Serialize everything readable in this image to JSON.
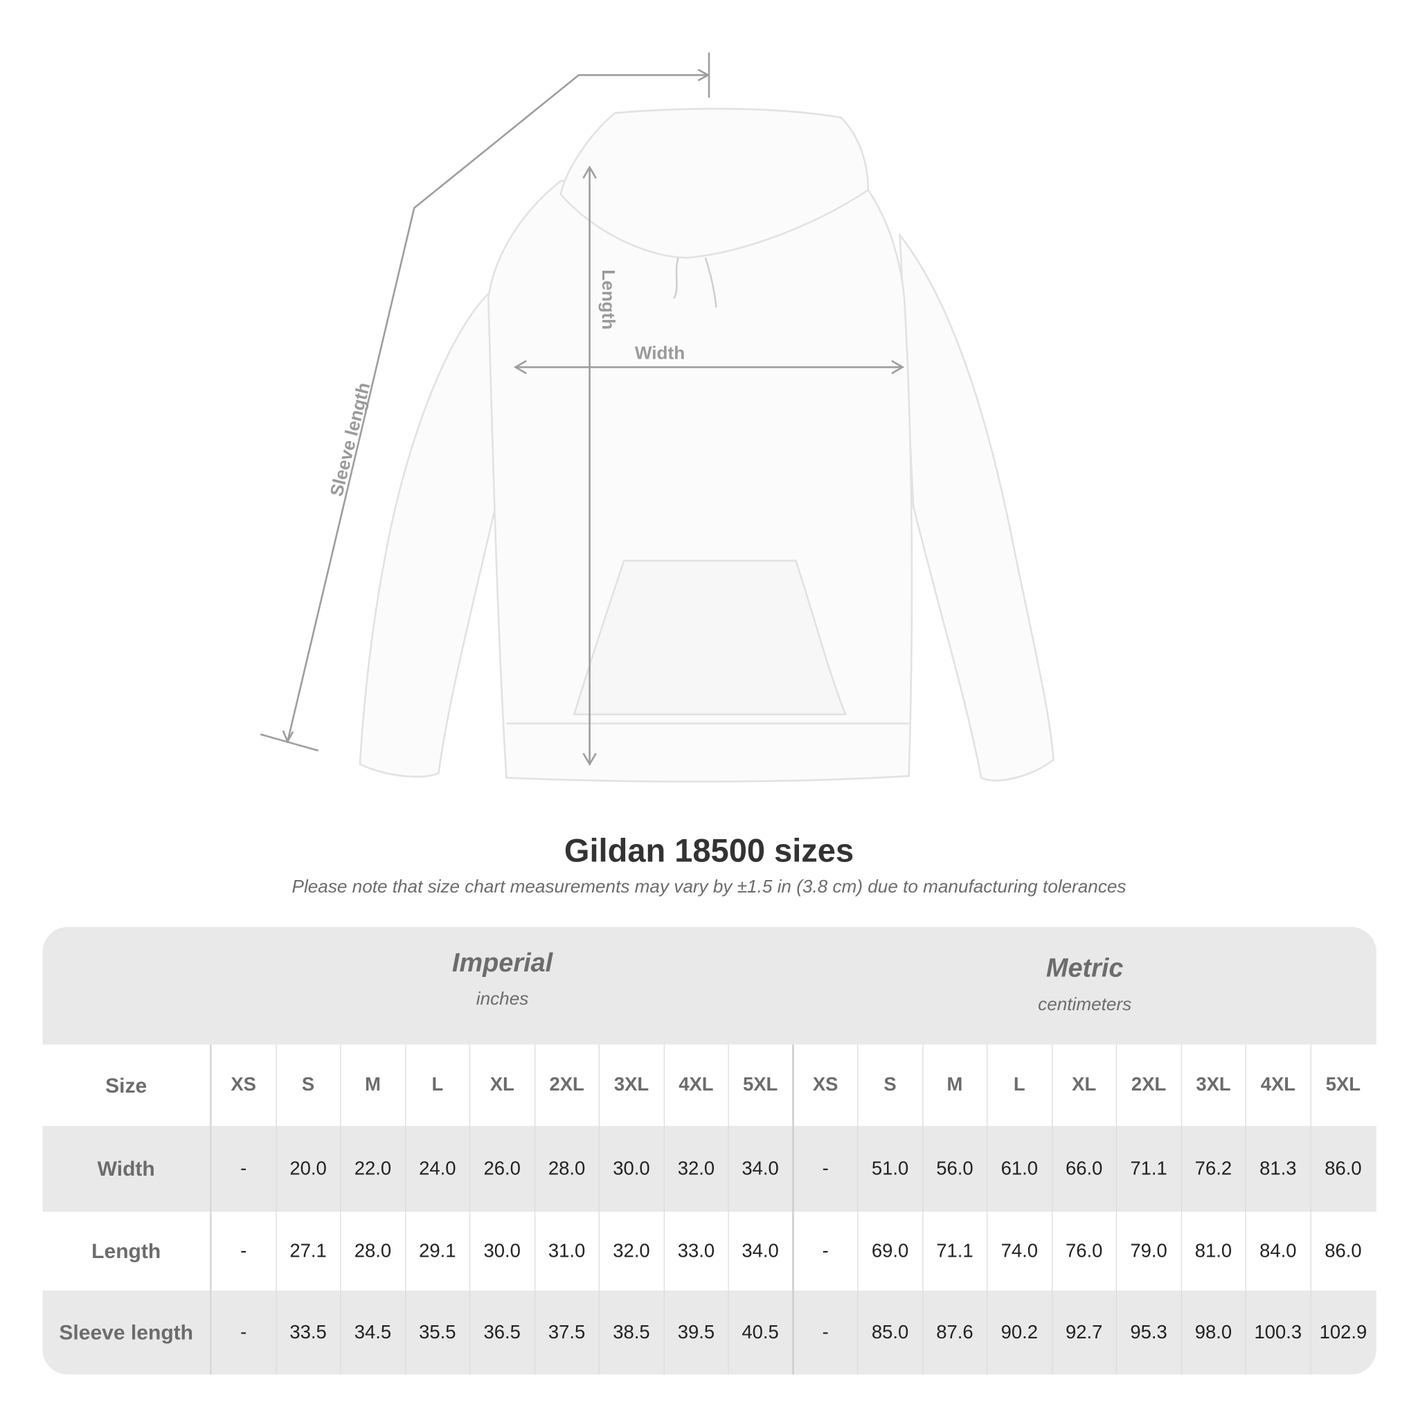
{
  "diagram": {
    "labels": {
      "sleeve": "Sleeve length",
      "length": "Length",
      "width": "Width"
    },
    "line_color": "#9e9e9e"
  },
  "title": "Gildan 18500 sizes",
  "note": "Please note that size chart measurements may vary by ±1.5 in (3.8 cm) due to manufacturing tolerances",
  "table": {
    "imperial": {
      "name": "Imperial",
      "unit": "inches"
    },
    "metric": {
      "name": "Metric",
      "unit": "centimeters"
    },
    "size_label": "Size",
    "sizes": [
      "XS",
      "S",
      "M",
      "L",
      "XL",
      "2XL",
      "3XL",
      "4XL",
      "5XL"
    ],
    "rows": [
      {
        "label": "Width",
        "imperial": [
          "-",
          "20.0",
          "22.0",
          "24.0",
          "26.0",
          "28.0",
          "30.0",
          "32.0",
          "34.0"
        ],
        "metric": [
          "-",
          "51.0",
          "56.0",
          "61.0",
          "66.0",
          "71.1",
          "76.2",
          "81.3",
          "86.0"
        ]
      },
      {
        "label": "Length",
        "imperial": [
          "-",
          "27.1",
          "28.0",
          "29.1",
          "30.0",
          "31.0",
          "32.0",
          "33.0",
          "34.0"
        ],
        "metric": [
          "-",
          "69.0",
          "71.1",
          "74.0",
          "76.0",
          "79.0",
          "81.0",
          "84.0",
          "86.0"
        ]
      },
      {
        "label": "Sleeve length",
        "imperial": [
          "-",
          "33.5",
          "34.5",
          "35.5",
          "36.5",
          "37.5",
          "38.5",
          "39.5",
          "40.5"
        ],
        "metric": [
          "-",
          "85.0",
          "87.6",
          "90.2",
          "92.7",
          "95.3",
          "98.0",
          "100.3",
          "102.9"
        ]
      }
    ],
    "band_color": "#e9e9e9"
  }
}
